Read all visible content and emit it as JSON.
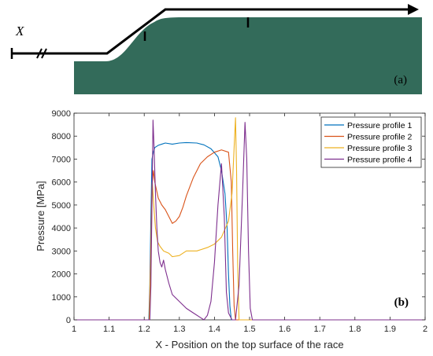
{
  "panel_a": {
    "x_label": "X",
    "panel_label": "(a)"
  },
  "panel_b": {
    "panel_label": "(b)"
  },
  "colors": {
    "race_fill": "#336b5a",
    "series_1": "#0072bd",
    "series_2": "#d95319",
    "series_3": "#edb120",
    "series_4": "#7e2f8e"
  },
  "chart_data": {
    "type": "line",
    "xlabel": "X - Position on the top surface of the race",
    "ylabel": "Pressure [MPa]",
    "xlim": [
      1,
      2
    ],
    "ylim": [
      0,
      9000
    ],
    "xticks": [
      "1",
      "1.1",
      "1.2",
      "1.3",
      "1.4",
      "1.5",
      "1.6",
      "1.7",
      "1.8",
      "1.9",
      "2"
    ],
    "yticks": [
      "0",
      "1000",
      "2000",
      "3000",
      "4000",
      "5000",
      "6000",
      "7000",
      "8000",
      "9000"
    ],
    "legend_position": "top-right",
    "grid": false,
    "series": [
      {
        "name": "Pressure profile 1",
        "points": [
          [
            1.0,
            0
          ],
          [
            1.213,
            0
          ],
          [
            1.216,
            1500
          ],
          [
            1.219,
            4500
          ],
          [
            1.222,
            7000
          ],
          [
            1.226,
            7300
          ],
          [
            1.23,
            7500
          ],
          [
            1.24,
            7600
          ],
          [
            1.25,
            7650
          ],
          [
            1.26,
            7700
          ],
          [
            1.28,
            7650
          ],
          [
            1.3,
            7700
          ],
          [
            1.32,
            7720
          ],
          [
            1.35,
            7700
          ],
          [
            1.37,
            7620
          ],
          [
            1.39,
            7450
          ],
          [
            1.41,
            7100
          ],
          [
            1.42,
            6500
          ],
          [
            1.43,
            5500
          ],
          [
            1.436,
            4000
          ],
          [
            1.44,
            2000
          ],
          [
            1.444,
            600
          ],
          [
            1.448,
            0
          ],
          [
            2.0,
            0
          ]
        ]
      },
      {
        "name": "Pressure profile 2",
        "points": [
          [
            1.0,
            0
          ],
          [
            1.214,
            0
          ],
          [
            1.218,
            2500
          ],
          [
            1.222,
            5800
          ],
          [
            1.226,
            6500
          ],
          [
            1.23,
            6000
          ],
          [
            1.24,
            5300
          ],
          [
            1.25,
            5000
          ],
          [
            1.26,
            4800
          ],
          [
            1.27,
            4500
          ],
          [
            1.28,
            4200
          ],
          [
            1.29,
            4300
          ],
          [
            1.3,
            4500
          ],
          [
            1.31,
            4900
          ],
          [
            1.32,
            5400
          ],
          [
            1.34,
            6200
          ],
          [
            1.36,
            6800
          ],
          [
            1.38,
            7100
          ],
          [
            1.4,
            7300
          ],
          [
            1.42,
            7400
          ],
          [
            1.44,
            7300
          ],
          [
            1.448,
            6000
          ],
          [
            1.452,
            3000
          ],
          [
            1.456,
            600
          ],
          [
            1.46,
            0
          ],
          [
            2.0,
            0
          ]
        ]
      },
      {
        "name": "Pressure profile 3",
        "points": [
          [
            1.0,
            0
          ],
          [
            1.215,
            0
          ],
          [
            1.219,
            2500
          ],
          [
            1.223,
            6000
          ],
          [
            1.227,
            5000
          ],
          [
            1.232,
            4000
          ],
          [
            1.238,
            3400
          ],
          [
            1.245,
            3200
          ],
          [
            1.255,
            3000
          ],
          [
            1.27,
            2900
          ],
          [
            1.28,
            2750
          ],
          [
            1.3,
            2800
          ],
          [
            1.32,
            3000
          ],
          [
            1.35,
            3000
          ],
          [
            1.38,
            3150
          ],
          [
            1.4,
            3300
          ],
          [
            1.42,
            3600
          ],
          [
            1.44,
            4300
          ],
          [
            1.45,
            5500
          ],
          [
            1.456,
            7500
          ],
          [
            1.46,
            8800
          ],
          [
            1.463,
            6500
          ],
          [
            1.466,
            2500
          ],
          [
            1.47,
            0
          ],
          [
            2.0,
            0
          ]
        ]
      },
      {
        "name": "Pressure profile 4",
        "points": [
          [
            1.0,
            0
          ],
          [
            1.216,
            0
          ],
          [
            1.219,
            1500
          ],
          [
            1.222,
            5000
          ],
          [
            1.225,
            8700
          ],
          [
            1.228,
            7500
          ],
          [
            1.232,
            5500
          ],
          [
            1.236,
            4000
          ],
          [
            1.24,
            3000
          ],
          [
            1.245,
            2500
          ],
          [
            1.25,
            2300
          ],
          [
            1.255,
            2600
          ],
          [
            1.26,
            2200
          ],
          [
            1.27,
            1600
          ],
          [
            1.28,
            1100
          ],
          [
            1.3,
            800
          ],
          [
            1.32,
            500
          ],
          [
            1.34,
            300
          ],
          [
            1.36,
            100
          ],
          [
            1.37,
            0
          ],
          [
            1.38,
            200
          ],
          [
            1.39,
            800
          ],
          [
            1.4,
            2500
          ],
          [
            1.41,
            5000
          ],
          [
            1.42,
            6800
          ],
          [
            1.428,
            4500
          ],
          [
            1.434,
            1200
          ],
          [
            1.44,
            300
          ],
          [
            1.45,
            0
          ],
          [
            1.46,
            0
          ],
          [
            1.47,
            1500
          ],
          [
            1.48,
            5500
          ],
          [
            1.487,
            8600
          ],
          [
            1.492,
            7000
          ],
          [
            1.497,
            3000
          ],
          [
            1.502,
            500
          ],
          [
            1.508,
            0
          ],
          [
            2.0,
            0
          ]
        ]
      }
    ]
  }
}
